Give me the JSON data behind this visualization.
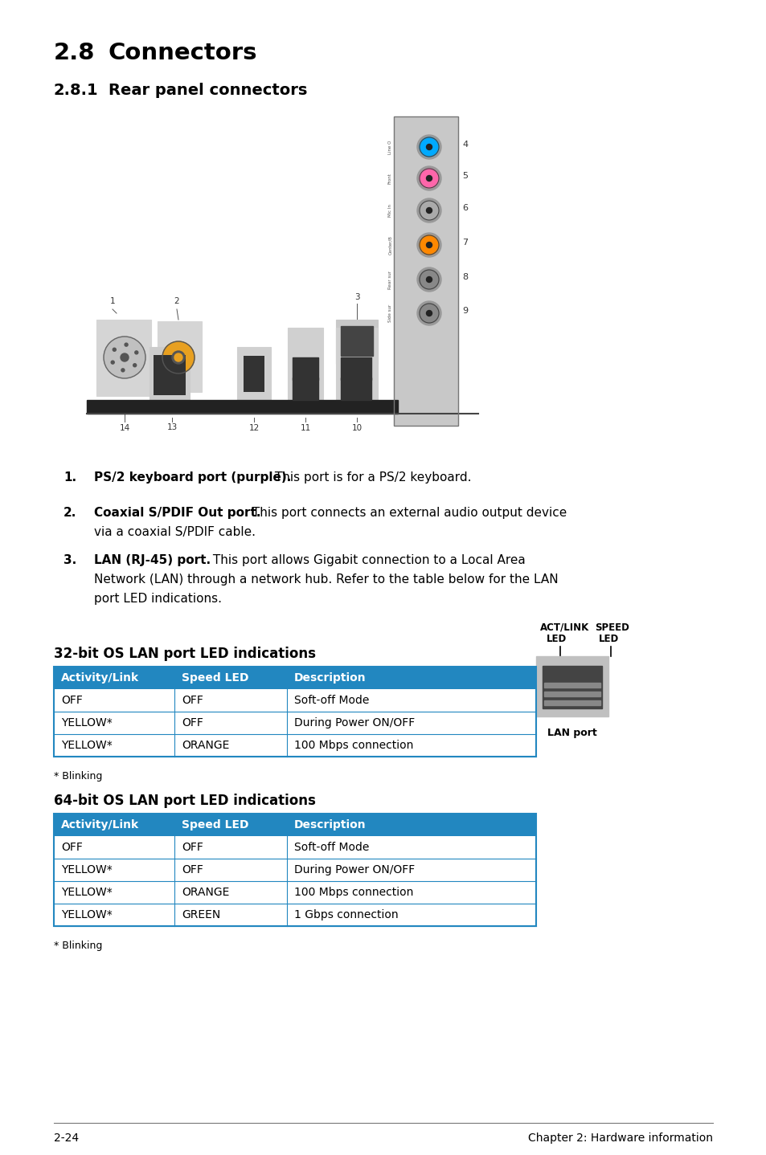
{
  "title_main_num": "2.8",
  "title_main_text": "Connectors",
  "title_sub_num": "2.8.1",
  "title_sub_text": "Rear panel connectors",
  "background_color": "#ffffff",
  "table_header_bg": "#2287C0",
  "table_header_text": "#ffffff",
  "table_border_color": "#2287C0",
  "table32_title": "32-bit OS LAN port LED indications",
  "table32_headers": [
    "Activity/Link",
    "Speed LED",
    "Description"
  ],
  "table32_rows": [
    [
      "OFF",
      "OFF",
      "Soft-off Mode"
    ],
    [
      "YELLOW*",
      "OFF",
      "During Power ON/OFF"
    ],
    [
      "YELLOW*",
      "ORANGE",
      "100 Mbps connection"
    ]
  ],
  "table64_title": "64-bit OS LAN port LED indications",
  "table64_headers": [
    "Activity/Link",
    "Speed LED",
    "Description"
  ],
  "table64_rows": [
    [
      "OFF",
      "OFF",
      "Soft-off Mode"
    ],
    [
      "YELLOW*",
      "OFF",
      "During Power ON/OFF"
    ],
    [
      "YELLOW*",
      "ORANGE",
      "100 Mbps connection"
    ],
    [
      "YELLOW*",
      "GREEN",
      "1 Gbps connection"
    ]
  ],
  "blinking_note": "* Blinking",
  "footer_left": "2-24",
  "footer_right": "Chapter 2: Hardware information",
  "jack_colors": [
    "#00aaff",
    "#ff66aa",
    "#aaaaaa",
    "#ff8800",
    "#888888",
    "#888888"
  ],
  "jack_numbers": [
    4,
    5,
    6,
    7,
    8,
    9
  ],
  "jack_labels": [
    "Line O",
    "Front",
    "Mic In",
    "Center/B",
    "Rear sur",
    "Side sur"
  ]
}
